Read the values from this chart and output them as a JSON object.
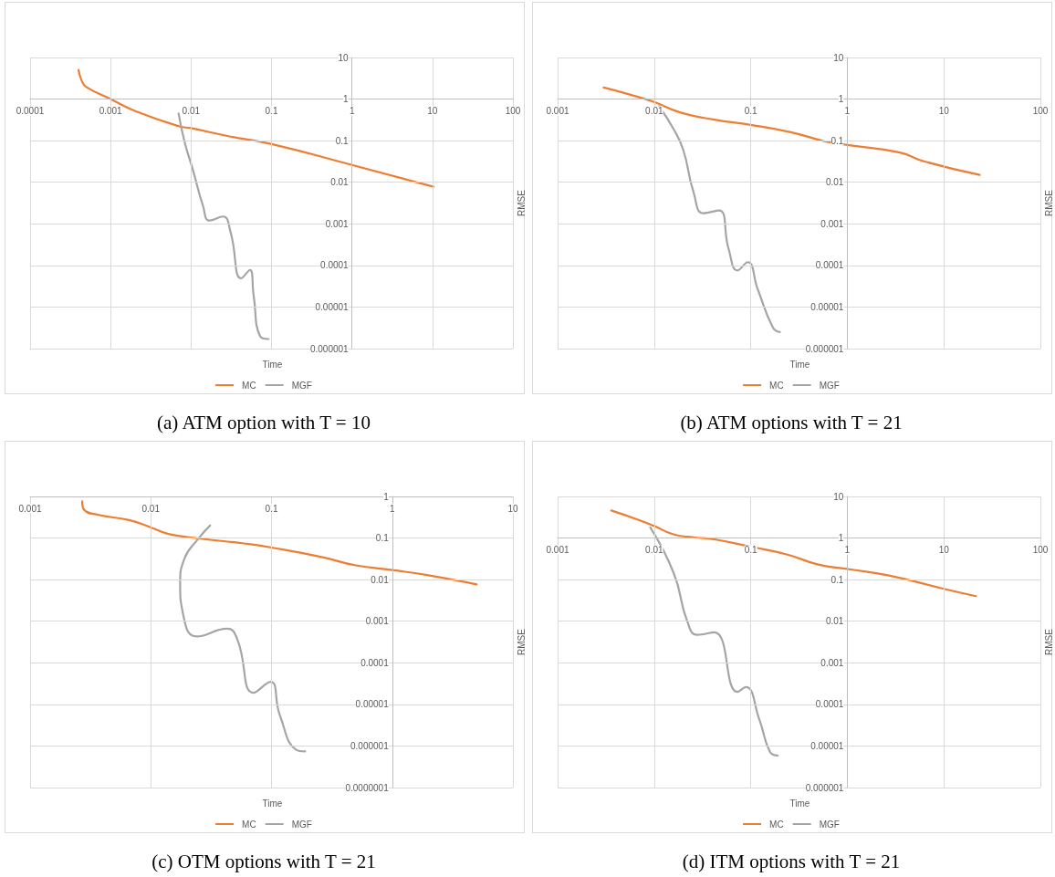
{
  "chart_data": [
    {
      "type": "line",
      "title": "(a) ATM option with T = 10",
      "xlabel": "Time",
      "ylabel": "RMSE",
      "log": "xy",
      "grid": true,
      "legend": "bottom",
      "marker": "none",
      "line_style": "solid",
      "xlim": [
        0.0001,
        100
      ],
      "xticks": [
        0.0001,
        0.001,
        0.01,
        0.1,
        1,
        10,
        100
      ],
      "ylim": [
        1e-06,
        10
      ],
      "yticks": [
        {
          "value": 1e-06,
          "label": "0.000001"
        },
        {
          "value": 1e-05,
          "label": "0.00001"
        },
        0.0001,
        0.001,
        0.01,
        0.1,
        1,
        10
      ],
      "series": [
        {
          "name": "MC",
          "color": "#ed7d31",
          "x": [
            0.0004,
            0.00044,
            0.0005,
            0.001,
            0.002,
            0.0072,
            0.01,
            0.031,
            0.1,
            1,
            10.3
          ],
          "values": [
            5,
            2.7,
            1.95,
            1,
            0.52,
            0.22,
            0.2,
            0.125,
            0.083,
            0.026,
            0.0078
          ]
        },
        {
          "name": "MGF",
          "color": "#a5a5a5",
          "x": [
            0.007,
            0.0083,
            0.0107,
            0.014,
            0.017,
            0.025,
            0.031,
            0.042,
            0.054,
            0.06,
            0.072,
            0.092
          ],
          "values": [
            0.45,
            0.095,
            0.018,
            0.0028,
            0.0012,
            0.0015,
            0.00063,
            4.9e-05,
            7.8e-05,
            1.9e-05,
            2e-06,
            1.7e-06
          ]
        }
      ]
    },
    {
      "type": "line",
      "title": "(b) ATM options with T = 21",
      "xlabel": "Time",
      "ylabel": "RMSE",
      "log": "xy",
      "grid": true,
      "legend": "bottom",
      "marker": "none",
      "line_style": "solid",
      "xlim": [
        0.001,
        100
      ],
      "xticks": [
        0.001,
        0.01,
        0.1,
        1,
        10,
        100
      ],
      "ylim": [
        1e-06,
        10
      ],
      "yticks": [
        {
          "value": 1e-06,
          "label": "0.000001"
        },
        {
          "value": 1e-05,
          "label": "0.00001"
        },
        0.0001,
        0.001,
        0.01,
        0.1,
        1,
        10
      ],
      "series": [
        {
          "name": "MC",
          "color": "#ed7d31",
          "x": [
            0.003,
            0.0055,
            0.01,
            0.0185,
            0.042,
            0.1,
            0.26,
            0.59,
            1,
            3.5,
            6.2,
            23.5
          ],
          "values": [
            1.9,
            1.3,
            0.85,
            0.48,
            0.32,
            0.24,
            0.16,
            0.096,
            0.079,
            0.052,
            0.032,
            0.015
          ]
        },
        {
          "name": "MGF",
          "color": "#a5a5a5",
          "x": [
            0.0112,
            0.0157,
            0.02,
            0.0255,
            0.0324,
            0.047,
            0.059,
            0.073,
            0.093,
            0.118,
            0.17,
            0.2
          ],
          "values": [
            0.67,
            0.2,
            0.06,
            0.0059,
            0.0018,
            0.0021,
            0.00025,
            7.6e-05,
            0.00012,
            2.7e-05,
            3.2e-06,
            2.5e-06
          ]
        }
      ]
    },
    {
      "type": "line",
      "title": "(c) OTM options with T = 21",
      "xlabel": "Time",
      "ylabel": "RMSE",
      "log": "xy",
      "grid": true,
      "legend": "bottom",
      "marker": "none",
      "line_style": "solid",
      "xlim": [
        0.001,
        10
      ],
      "xticks": [
        0.001,
        0.01,
        0.1,
        1,
        10
      ],
      "ylim": [
        1e-07,
        1
      ],
      "yticks": [
        {
          "value": 1e-07,
          "label": "0.0000001"
        },
        {
          "value": 1e-06,
          "label": "0.000001"
        },
        {
          "value": 1e-05,
          "label": "0.00001"
        },
        0.0001,
        0.001,
        0.01,
        0.1,
        1
      ],
      "series": [
        {
          "name": "MC",
          "color": "#ed7d31",
          "x": [
            0.0027,
            0.0028,
            0.0037,
            0.0066,
            0.01,
            0.014,
            0.025,
            0.059,
            0.1,
            0.26,
            0.5,
            1,
            2.04,
            5
          ],
          "values": [
            0.76,
            0.48,
            0.36,
            0.27,
            0.18,
            0.125,
            0.098,
            0.074,
            0.059,
            0.035,
            0.022,
            0.017,
            0.0126,
            0.0077
          ]
        },
        {
          "name": "MGF",
          "color": "#a5a5a5",
          "x": [
            0.031,
            0.025,
            0.019,
            0.0175,
            0.0185,
            0.024,
            0.043,
            0.052,
            0.071,
            0.098,
            0.117,
            0.16,
            0.19
          ],
          "values": [
            0.2,
            0.1,
            0.032,
            0.008,
            0.0015,
            0.00043,
            0.00066,
            0.00037,
            1.9e-05,
            3.5e-05,
            5.6e-06,
            8.1e-07,
            7.4e-07
          ]
        }
      ]
    },
    {
      "type": "line",
      "title": "(d) ITM options with T = 21",
      "xlabel": "Time",
      "ylabel": "RMSE",
      "log": "xy",
      "grid": true,
      "legend": "bottom",
      "marker": "none",
      "line_style": "solid",
      "xlim": [
        0.001,
        100
      ],
      "xticks": [
        0.001,
        0.01,
        0.1,
        1,
        10,
        100
      ],
      "ylim": [
        1e-06,
        10
      ],
      "yticks": [
        {
          "value": 1e-06,
          "label": "0.000001"
        },
        {
          "value": 1e-05,
          "label": "0.00001"
        },
        0.0001,
        0.001,
        0.01,
        0.1,
        1,
        10
      ],
      "series": [
        {
          "name": "MC",
          "color": "#ed7d31",
          "x": [
            0.0036,
            0.007,
            0.01,
            0.0158,
            0.0257,
            0.042,
            0.1,
            0.24,
            0.5,
            1,
            2.7,
            10,
            21.5
          ],
          "values": [
            4.6,
            2.7,
            1.95,
            1.23,
            1.04,
            0.93,
            0.62,
            0.4,
            0.23,
            0.18,
            0.126,
            0.06,
            0.04
          ]
        },
        {
          "name": "MGF",
          "color": "#a5a5a5",
          "x": [
            0.0091,
            0.016,
            0.022,
            0.028,
            0.042,
            0.073,
            0.089,
            0.123,
            0.158,
            0.19
          ],
          "values": [
            1.8,
            0.14,
            0.01,
            0.0047,
            0.0054,
            0.0002,
            0.00026,
            4.3e-05,
            7.3e-06,
            5.9e-06
          ]
        }
      ]
    }
  ]
}
